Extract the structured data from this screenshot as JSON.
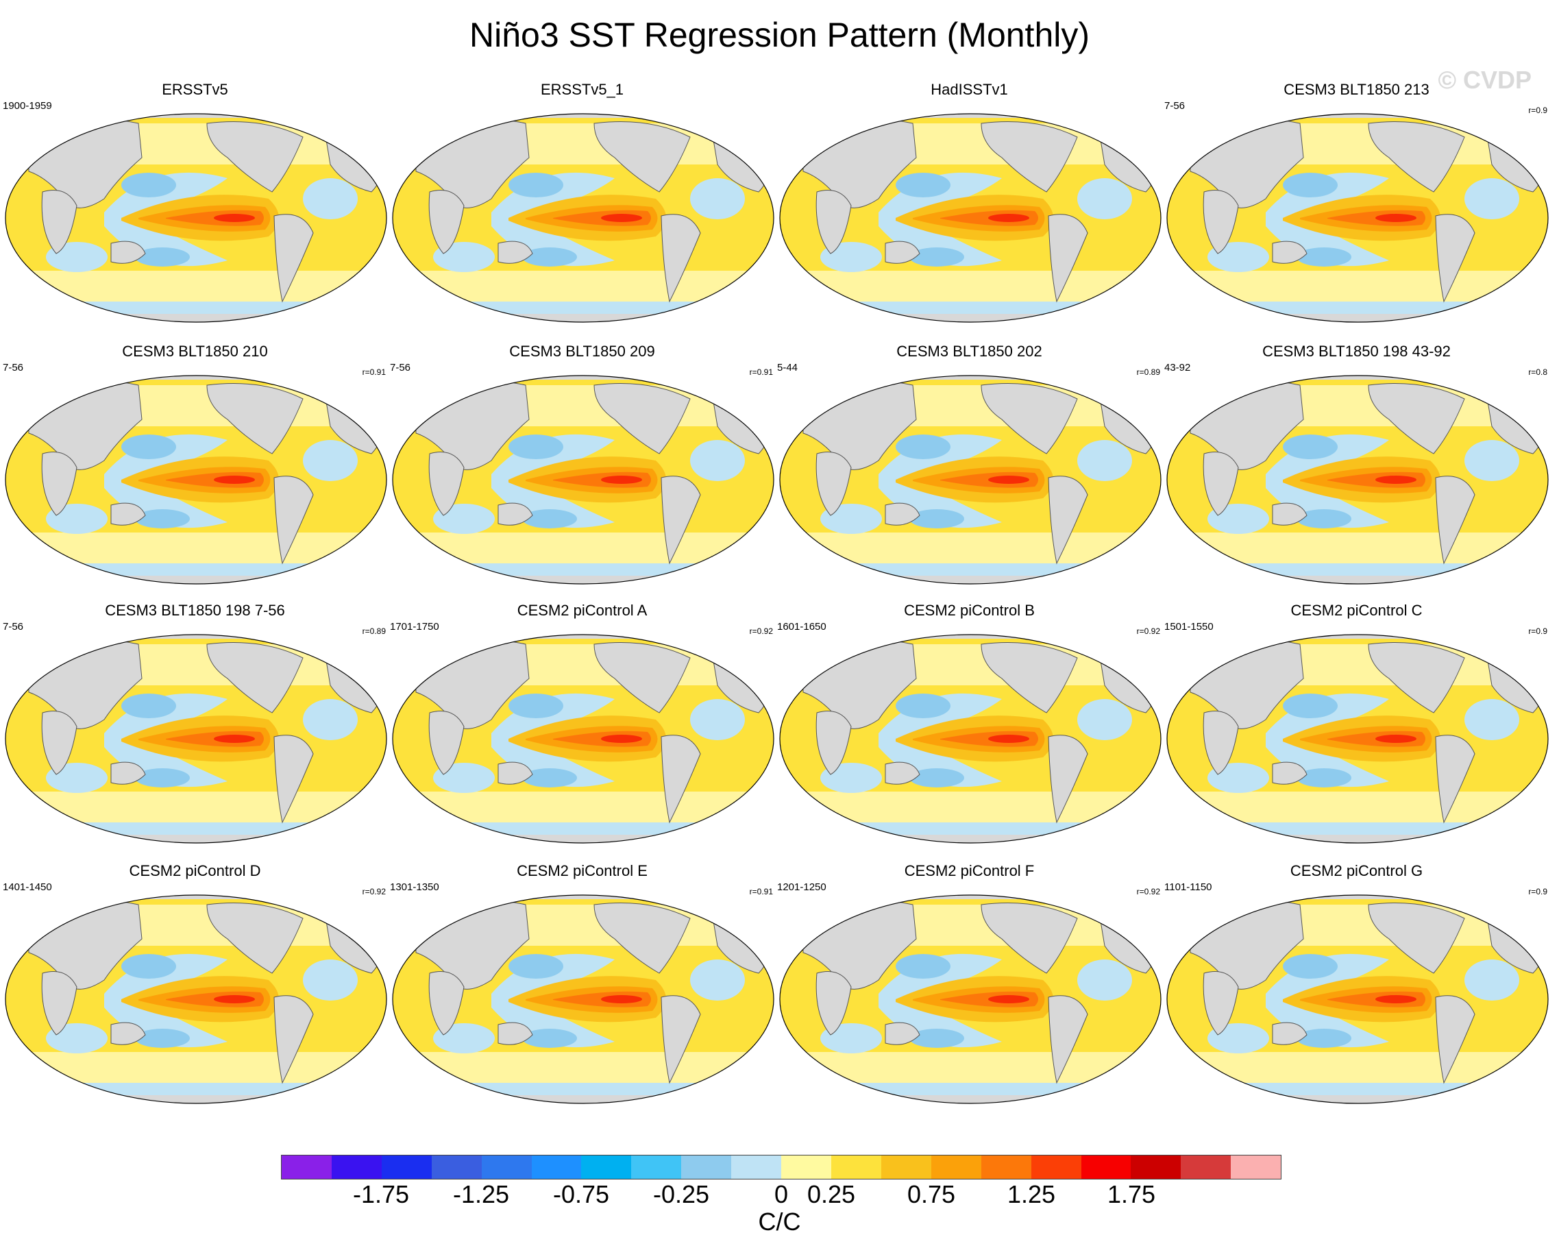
{
  "title": "Niño3 SST Regression Pattern (Monthly)",
  "watermark": "© CVDP",
  "units": "C/C",
  "panels": [
    {
      "title": "ERSSTv5",
      "period": "1900-1959",
      "corr": ""
    },
    {
      "title": "ERSSTv5_1",
      "period": "",
      "corr": ""
    },
    {
      "title": "HadISSTv1",
      "period": "",
      "corr": ""
    },
    {
      "title": "CESM3 BLT1850 213",
      "period": "7-56",
      "corr": "r=0.9"
    },
    {
      "title": "CESM3 BLT1850 210",
      "period": "7-56",
      "corr": "r=0.91"
    },
    {
      "title": "CESM3 BLT1850 209",
      "period": "7-56",
      "corr": "r=0.91"
    },
    {
      "title": "CESM3 BLT1850 202",
      "period": "5-44",
      "corr": "r=0.89"
    },
    {
      "title": "CESM3 BLT1850 198 43-92",
      "period": "43-92",
      "corr": "r=0.8"
    },
    {
      "title": "CESM3 BLT1850 198 7-56",
      "period": "7-56",
      "corr": "r=0.89"
    },
    {
      "title": "CESM2 piControl A",
      "period": "1701-1750",
      "corr": "r=0.92"
    },
    {
      "title": "CESM2 piControl B",
      "period": "1601-1650",
      "corr": "r=0.92"
    },
    {
      "title": "CESM2 piControl C",
      "period": "1501-1550",
      "corr": "r=0.9"
    },
    {
      "title": "CESM2 piControl D",
      "period": "1401-1450",
      "corr": "r=0.92"
    },
    {
      "title": "CESM2 piControl E",
      "period": "1301-1350",
      "corr": "r=0.91"
    },
    {
      "title": "CESM2 piControl F",
      "period": "1201-1250",
      "corr": "r=0.92"
    },
    {
      "title": "CESM2 piControl G",
      "period": "1101-1150",
      "corr": "r=0.9"
    }
  ],
  "colorbar": {
    "colors": [
      "#8a20e8",
      "#3a12f0",
      "#1a2ef0",
      "#3a5ee0",
      "#2e78ee",
      "#1e90ff",
      "#00b0f0",
      "#40c4f6",
      "#8ecbee",
      "#bfe3f5",
      "#fffaa0",
      "#fde23c",
      "#f9c11c",
      "#fba10a",
      "#fc780a",
      "#fb3f06",
      "#f70000",
      "#cc0000",
      "#d63a3a",
      "#fbb0b0"
    ],
    "labels": [
      "-1.75",
      "-1.25",
      "-0.75",
      "-0.25",
      "0",
      "0.25",
      "0.75",
      "1.25",
      "1.75"
    ]
  },
  "map_colors": {
    "land": "#d8d8d8",
    "coast": "#555555",
    "weak_pos": "#fff5a0",
    "pos_1": "#fde23c",
    "pos_2": "#f9c11c",
    "pos_3": "#fba10a",
    "pos_4": "#fc780a",
    "pos_5": "#f72c06",
    "neg_1": "#bfe3f5",
    "neg_2": "#8ecbee"
  }
}
